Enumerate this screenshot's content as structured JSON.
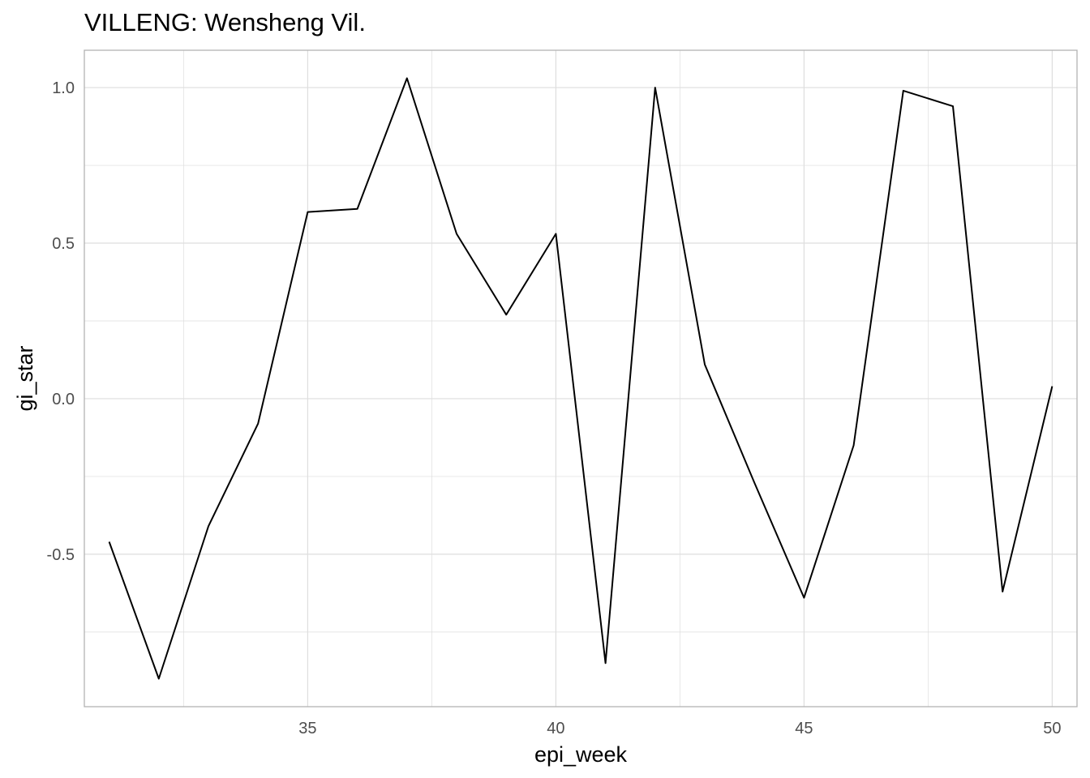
{
  "chart_data": {
    "type": "line",
    "title": "VILLENG: Wensheng Vil.",
    "xlabel": "epi_week",
    "ylabel": "gi_star",
    "xlim": [
      30.5,
      50.5
    ],
    "ylim": [
      -0.99,
      1.12
    ],
    "x_ticks": [
      35,
      40,
      45,
      50
    ],
    "x_tick_labels": [
      "35",
      "40",
      "45",
      "50"
    ],
    "y_ticks": [
      -0.5,
      0.0,
      0.5,
      1.0
    ],
    "y_tick_labels": [
      "-0.5",
      "0.0",
      "0.5",
      "1.0"
    ],
    "grid": true,
    "line_color": "#000000",
    "grid_color": "#dedede",
    "series": [
      {
        "x": [
          31,
          32,
          33,
          34,
          35,
          36,
          37,
          38,
          39,
          40,
          41,
          42,
          43,
          44,
          45,
          46,
          47,
          48,
          49,
          50
        ],
        "values": [
          -0.46,
          -0.9,
          -0.41,
          -0.08,
          0.6,
          0.61,
          1.03,
          0.53,
          0.27,
          0.53,
          -0.85,
          1.0,
          0.11,
          -0.27,
          -0.64,
          -0.15,
          0.99,
          0.94,
          -0.62,
          0.04
        ]
      }
    ]
  }
}
